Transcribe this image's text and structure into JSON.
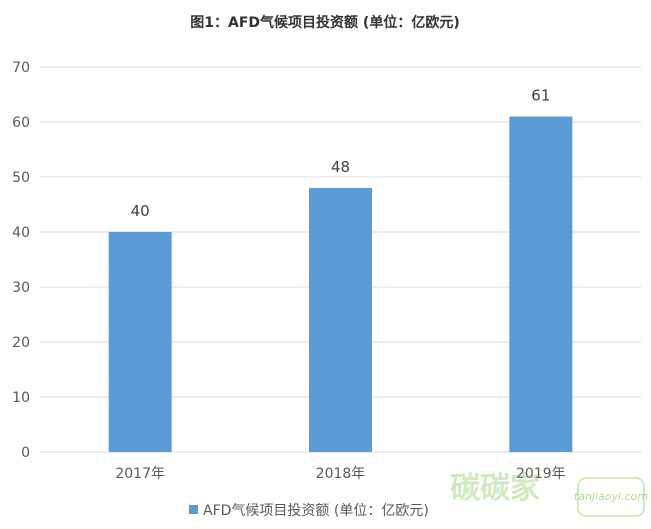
{
  "chart_data": {
    "type": "bar",
    "title": "图1：AFD气候项目投资额 (单位：亿欧元)",
    "categories": [
      "2017年",
      "2018年",
      "2019年"
    ],
    "series": [
      {
        "name": "AFD气候项目投资额 (单位：亿欧元)",
        "values": [
          40,
          48,
          61
        ]
      }
    ],
    "ylim": [
      0,
      70
    ],
    "yticks": [
      0,
      10,
      20,
      30,
      40,
      50,
      60,
      70
    ],
    "grid": true,
    "legend": "bottom",
    "bar_color": "#5b9bd5",
    "grid_color": "#d9d9d9"
  },
  "watermark": {
    "text": "碳碳家",
    "subtext": "tanjiaoyi.com"
  }
}
